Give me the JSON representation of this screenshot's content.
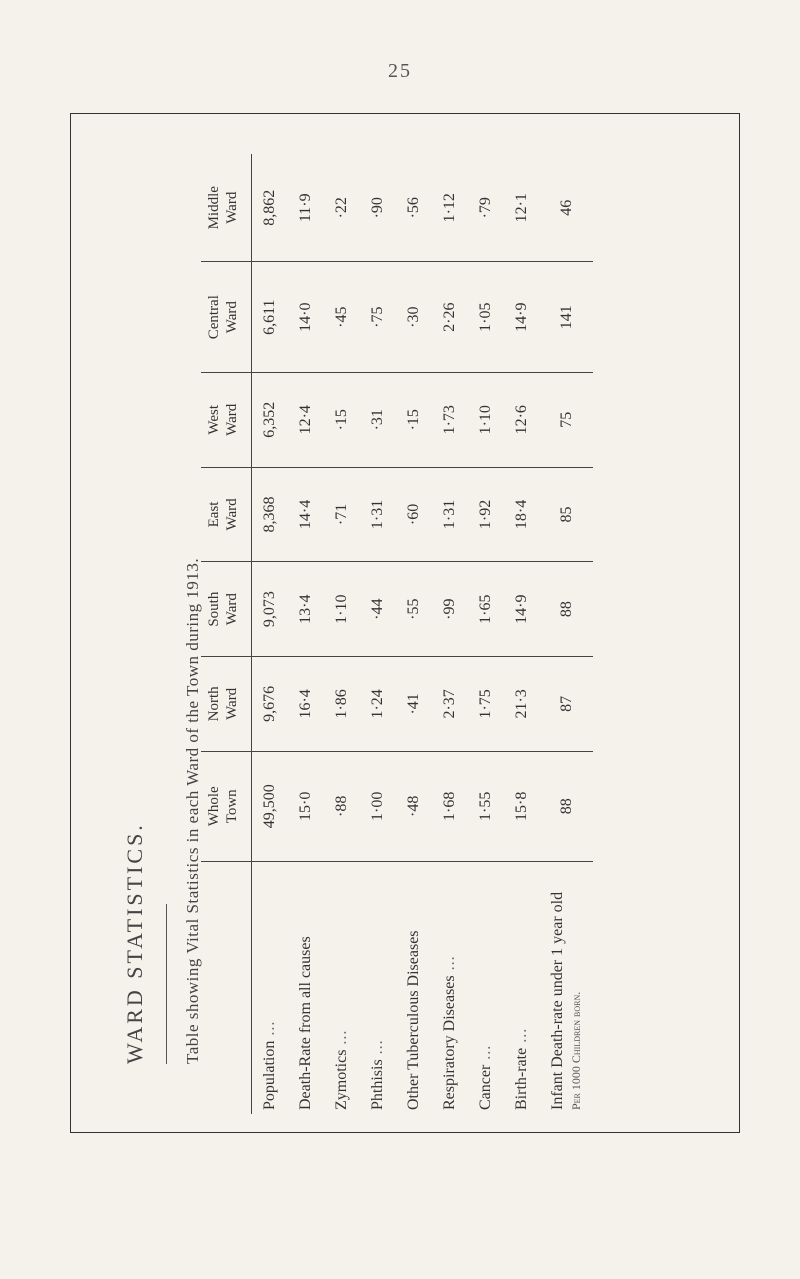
{
  "page_number": "25",
  "title": "WARD STATISTICS.",
  "subtitle": "Table showing Vital Statistics in each Ward of the Town during 1913.",
  "columns": [
    {
      "key": "whole",
      "line1": "Whole",
      "line2": "Town"
    },
    {
      "key": "north",
      "line1": "North",
      "line2": "Ward"
    },
    {
      "key": "south",
      "line1": "South",
      "line2": "Ward"
    },
    {
      "key": "east",
      "line1": "East",
      "line2": "Ward"
    },
    {
      "key": "west",
      "line1": "West",
      "line2": "Ward"
    },
    {
      "key": "central",
      "line1": "Central",
      "line2": "Ward"
    },
    {
      "key": "middle",
      "line1": "Middle",
      "line2": "Ward"
    }
  ],
  "rows": [
    {
      "label": "Population",
      "has_dots": true,
      "values": [
        "49,500",
        "9,676",
        "9,073",
        "8,368",
        "6,352",
        "6,611",
        "8,862"
      ]
    },
    {
      "label": "Death-Rate from all causes",
      "has_dots": false,
      "values": [
        "15·0",
        "16·4",
        "13·4",
        "14·4",
        "12·4",
        "14·0",
        "11·9"
      ]
    },
    {
      "label": "Zymotics",
      "has_dots": true,
      "values": [
        "·88",
        "1·86",
        "1·10",
        "·71",
        "·15",
        "·45",
        "·22"
      ]
    },
    {
      "label": "Phthisis",
      "has_dots": true,
      "values": [
        "1·00",
        "1·24",
        "·44",
        "1·31",
        "·31",
        "·75",
        "·90"
      ]
    },
    {
      "label": "Other Tuberculous Diseases",
      "has_dots": false,
      "values": [
        "·48",
        "·41",
        "·55",
        "·60",
        "·15",
        "·30",
        "·56"
      ]
    },
    {
      "label": "Respiratory Diseases",
      "has_dots": true,
      "values": [
        "1·68",
        "2·37",
        "·99",
        "1·31",
        "1·73",
        "2·26",
        "1·12"
      ]
    },
    {
      "label": "Cancer",
      "has_dots": true,
      "values": [
        "1·55",
        "1·75",
        "1·65",
        "1·92",
        "1·10",
        "1·05",
        "·79"
      ]
    },
    {
      "label": "Birth-rate",
      "has_dots": true,
      "values": [
        "15·8",
        "21·3",
        "14·9",
        "18·4",
        "12·6",
        "14·9",
        "12·1"
      ]
    },
    {
      "label": "Infant Death-rate under 1 year old",
      "footnote": "Per 1000 Children born.",
      "has_dots": false,
      "values": [
        "88",
        "87",
        "88",
        "85",
        "75",
        "141",
        "46"
      ]
    }
  ]
}
